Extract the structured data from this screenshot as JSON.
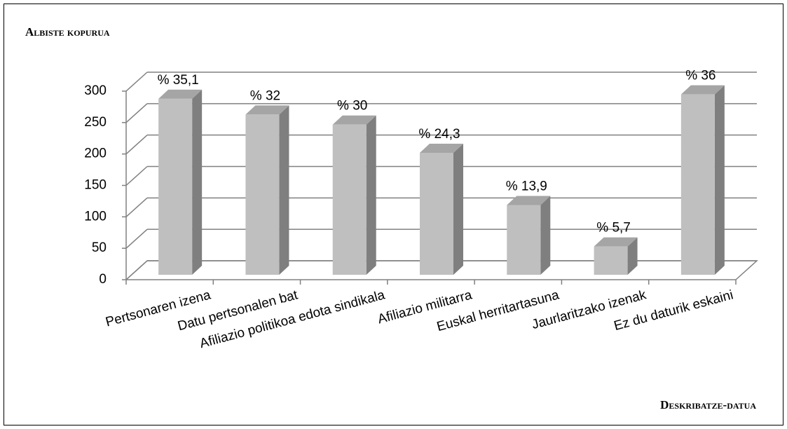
{
  "chart_data": {
    "type": "bar3d",
    "title": "Albiste kopurua",
    "x_label": "Deskribatze-datua",
    "categories": [
      "Pertsonaren izena",
      "Datu pertsonalen bat",
      "Afiliazio politikoa edota sindikala",
      "Afiliazio militarra",
      "Euskal herritartasuna",
      "Jaurlaritzako izenak",
      "Ez du daturik eskaini"
    ],
    "values": [
      280,
      255,
      239,
      194,
      111,
      45,
      287
    ],
    "percentages": [
      35.1,
      32,
      30,
      24.3,
      13.9,
      5.7,
      36
    ],
    "percentage_labels": [
      "% 35,1",
      "% 32",
      "% 30",
      "% 24,3",
      "% 13,9",
      "% 5,7",
      "% 36"
    ],
    "color": "#bfbfbf",
    "ylim": [
      0,
      300
    ],
    "yticks": [
      0,
      50,
      100,
      150,
      200,
      250,
      300
    ],
    "grid": true
  }
}
